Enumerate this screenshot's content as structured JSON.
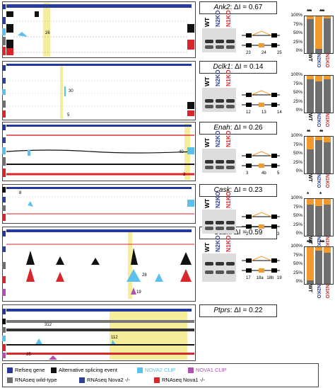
{
  "figure_panels": [
    {
      "id": "ank2",
      "gene": "Ank2",
      "di_label": ": ΔI = 0.67",
      "peak_labels": [
        "26"
      ],
      "exons": [
        "23",
        "24",
        "25"
      ],
      "stars_left": "***",
      "stars_right": "***"
    },
    {
      "id": "dclk1",
      "gene": "Dclk1",
      "di_label": ": ΔI = 0.14",
      "peak_labels": [
        "30",
        "5"
      ],
      "exons": [
        "12",
        "13",
        "14"
      ],
      "stars_left": "",
      "stars_right": ""
    },
    {
      "id": "enah",
      "gene": "Enah",
      "di_label": ": ΔI = 0.26",
      "peak_labels": [
        "40",
        "3"
      ],
      "exons": [
        "3",
        "4b",
        "5"
      ],
      "stars_left": "**",
      "stars_right": "**"
    },
    {
      "id": "cask1",
      "gene": "Cask",
      "di_label": ": ΔI = 0.23",
      "peak_labels": [
        "8"
      ],
      "exons": [
        "2",
        "3"
      ],
      "stars_left": "*",
      "stars_right": "*"
    },
    {
      "id": "cask2",
      "gene": "Cask",
      "di_label": ": ΔI = 0.59",
      "peak_labels": [
        "28",
        "19"
      ],
      "exons": [
        "17",
        "18a",
        "18b",
        "19"
      ],
      "stars_left": "***",
      "stars_right": "***"
    },
    {
      "id": "ptprs",
      "gene": "Ptprs",
      "di_label": ": ΔI = 0.22",
      "peak_labels": [
        "312",
        "112",
        "25"
      ],
      "exons": [],
      "stars_left": "",
      "stars_right": ""
    }
  ],
  "lanes": {
    "wt": "WT",
    "n2ko": "N2KO",
    "n1ko": "N1KO"
  },
  "bar_yticks": [
    "100%",
    "75%",
    "50%",
    "25%",
    "0%"
  ],
  "colors": {
    "refseq": "#23389a",
    "alt_event": "#111111",
    "nova2_clip": "#5bc0eb",
    "nova1_clip": "#b04fb4",
    "wt": "#6e6e6e",
    "nova2": "#2e3f9e",
    "nova1": "#d8262b",
    "highlight": "#f7f0a0",
    "bar_inclusion": "#f39a2f",
    "bar_other": "#6e6e6e"
  },
  "legend": {
    "refseq": "Refseq gene",
    "alt": "Alternative splicing event",
    "nova2clip": "NOVA2 CLIP",
    "nova1clip": "NOVA1 CLIP",
    "wt": "RNAseq wild-type",
    "nova2": "RNAseq Nova2 -/-",
    "nova1": "RNAseq Nova1 -/-"
  }
}
